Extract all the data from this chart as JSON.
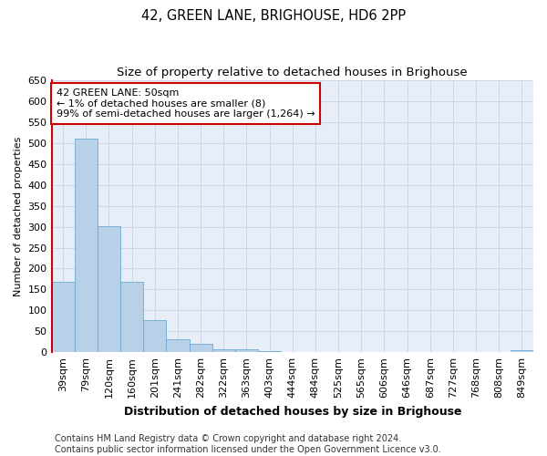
{
  "title": "42, GREEN LANE, BRIGHOUSE, HD6 2PP",
  "subtitle": "Size of property relative to detached houses in Brighouse",
  "xlabel": "Distribution of detached houses by size in Brighouse",
  "ylabel": "Number of detached properties",
  "categories": [
    "39sqm",
    "79sqm",
    "120sqm",
    "160sqm",
    "201sqm",
    "241sqm",
    "282sqm",
    "322sqm",
    "363sqm",
    "403sqm",
    "444sqm",
    "484sqm",
    "525sqm",
    "565sqm",
    "606sqm",
    "646sqm",
    "687sqm",
    "727sqm",
    "768sqm",
    "808sqm",
    "849sqm"
  ],
  "values": [
    168,
    511,
    302,
    168,
    77,
    32,
    20,
    8,
    8,
    3,
    0,
    0,
    0,
    0,
    0,
    0,
    0,
    0,
    0,
    0,
    5
  ],
  "bar_color": "#b8d0e8",
  "bar_edge_color": "#6aaad4",
  "annotation_line1": "42 GREEN LANE: 50sqm",
  "annotation_line2": "← 1% of detached houses are smaller (8)",
  "annotation_line3": "99% of semi-detached houses are larger (1,264) →",
  "annotation_box_color": "#ffffff",
  "annotation_box_edge_color": "#cc0000",
  "vline_color": "#cc0000",
  "ylim": [
    0,
    650
  ],
  "yticks": [
    0,
    50,
    100,
    150,
    200,
    250,
    300,
    350,
    400,
    450,
    500,
    550,
    600,
    650
  ],
  "grid_color": "#ccd6e8",
  "background_color": "#e8eef8",
  "footer_line1": "Contains HM Land Registry data © Crown copyright and database right 2024.",
  "footer_line2": "Contains public sector information licensed under the Open Government Licence v3.0.",
  "title_fontsize": 10.5,
  "subtitle_fontsize": 9.5,
  "xlabel_fontsize": 9,
  "ylabel_fontsize": 8,
  "tick_fontsize": 8,
  "annotation_fontsize": 8,
  "footer_fontsize": 7
}
